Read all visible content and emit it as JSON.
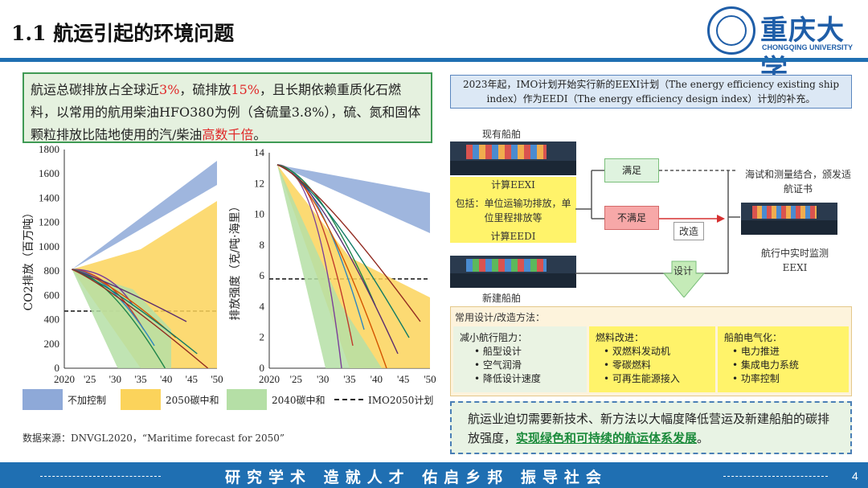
{
  "title": "1.1 航运引起的环境问题",
  "logo": {
    "cn": "重庆大学",
    "en": "CHONGQING UNIVERSITY"
  },
  "note": {
    "p1": "航运总碳排放占全球近",
    "v1": "3%",
    "p2": "，硫排放",
    "v2": "15%",
    "p3": "，且长期依赖重质化石燃料，以常用的航用柴油HFO380为例（含硫量3.8%），硫、氮和固体颗粒排放比陆地使用的汽/柴油",
    "v3": "高数千倍",
    "p4": "。"
  },
  "chart_data": [
    {
      "type": "area",
      "ylabel": "CO2排放（百万吨）",
      "ylim": [
        0,
        1800
      ],
      "yticks": [
        "0",
        "200",
        "400",
        "600",
        "800",
        "1000",
        "1200",
        "1400",
        "1600",
        "1800"
      ],
      "xticks": [
        "2020",
        "'25",
        "'30",
        "'35",
        "'40",
        "'45",
        "'50"
      ],
      "reference_line": {
        "name": "IMO2050计划",
        "value": 470
      }
    },
    {
      "type": "area",
      "ylabel": "排放强度（克/吨·海里）",
      "ylim": [
        0,
        14
      ],
      "yticks": [
        "0",
        "2",
        "4",
        "6",
        "8",
        "10",
        "12",
        "14"
      ],
      "xticks": [
        "2020",
        "'25",
        "'30",
        "'35",
        "'40",
        "'45",
        "'50"
      ],
      "reference_line": {
        "name": "IMO2050计划",
        "value": 5.8
      }
    }
  ],
  "legend": [
    {
      "label": "不加控制",
      "color": "#8ea9d8"
    },
    {
      "label": "2050碳中和",
      "color": "#fbd35b"
    },
    {
      "label": "2040碳中和",
      "color": "#b5dfa6"
    },
    {
      "label": "IMO2050计划",
      "color": "#222222"
    }
  ],
  "source": "数据来源：DNVGL2020，“Maritime forecast for 2050”",
  "panel_text": "2023年起，IMO计划开始实行新的EEXI计划（The energy efficiency existing ship index）作为EEDI（The energy efficiency design index）计划的补充。",
  "flow": {
    "existing": "现有船舶",
    "calc_eexi": "计算EEXI",
    "includes": "包括：单位运输功排放，单位里程排放等",
    "calc_eedi": "计算EEDI",
    "newbuild": "新建船舶",
    "satisfy": "满足",
    "not_satisfy": "不满足",
    "retrofit": "改造",
    "design": "设计",
    "certify": "海试和测量结合，颁发适航证书",
    "monitor": "航行中实时监测EEXI"
  },
  "methods": {
    "title": "常用设计/改造方法：",
    "cols": [
      {
        "head": "减小航行阻力：",
        "items": [
          "船型设计",
          "空气润滑",
          "降低设计速度"
        ]
      },
      {
        "head": "燃料改进：",
        "items": [
          "双燃料发动机",
          "零碳燃料",
          "可再生能源接入"
        ]
      },
      {
        "head": "船舶电气化：",
        "items": [
          "电力推进",
          "集成电力系统",
          "功率控制"
        ]
      }
    ]
  },
  "conclusion": {
    "text": "航运业迫切需要新技术、新方法以大幅度降低营运及新建船舶的碳排放强度，",
    "highlight": "实现绿色和可持续的航运体系发展",
    "end": "。"
  },
  "footer": {
    "motto": "研究学术 造就人才 佑启乡邦 振导社会",
    "page": "4"
  }
}
